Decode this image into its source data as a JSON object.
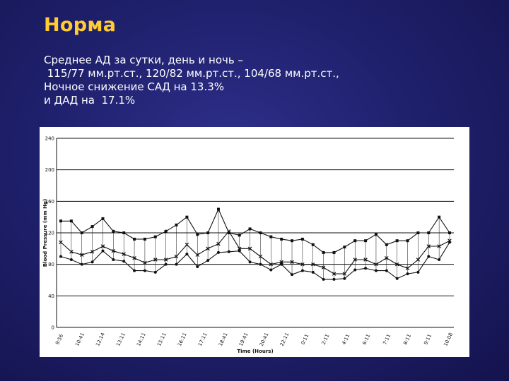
{
  "slide": {
    "title": "Норма",
    "lines": [
      "Среднее АД за сутки, день и ночь –",
      " 115/77 мм.рт.ст., 120/82 мм.рт.ст., 104/68 мм.рт.ст.,",
      "Ночное снижение САД на 13.3%",
      "и ДАД на  17.1%"
    ]
  },
  "colors": {
    "title": "#ffcc33",
    "text": "#ffffff",
    "series": "#111111",
    "background": "#1f2070"
  },
  "chart_data": {
    "type": "line",
    "xlabel": "Time (Hours)",
    "ylabel": "Blood Pressure (mm Hg)",
    "ylim": [
      0,
      240
    ],
    "yticks": [
      0,
      40,
      80,
      120,
      160,
      200,
      240
    ],
    "grid": "horizontal",
    "x_tick_labels": [
      "9:56",
      "10:41",
      "12:14",
      "13:11",
      "14:11",
      "15:11",
      "16:11",
      "17:11",
      "18:41",
      "19:41",
      "20:41",
      "22:11",
      "0:11",
      "2:11",
      "4:11",
      "6:11",
      "7:11",
      "8:11",
      "9:11",
      "10:08"
    ],
    "series": [
      {
        "marker": "square",
        "values": [
          135,
          135,
          120,
          128,
          138,
          122,
          120,
          112,
          112,
          115,
          122,
          130,
          140,
          118,
          120,
          150,
          120,
          117,
          125,
          120,
          115,
          112,
          110,
          112,
          105,
          95,
          95,
          102,
          110,
          110,
          118,
          105,
          110,
          110,
          120,
          120,
          140,
          120
        ]
      },
      {
        "marker": "x",
        "values": [
          108,
          96,
          92,
          96,
          103,
          97,
          93,
          88,
          82,
          86,
          86,
          90,
          105,
          92,
          100,
          106,
          122,
          100,
          100,
          90,
          80,
          83,
          83,
          80,
          80,
          76,
          68,
          68,
          86,
          86,
          80,
          88,
          80,
          75,
          86,
          103,
          103,
          110
        ]
      },
      {
        "marker": "dot",
        "values": [
          90,
          86,
          80,
          83,
          97,
          86,
          84,
          72,
          72,
          70,
          80,
          80,
          93,
          77,
          85,
          95,
          96,
          97,
          83,
          80,
          73,
          80,
          67,
          72,
          70,
          61,
          61,
          62,
          73,
          75,
          72,
          72,
          62,
          68,
          70,
          90,
          86,
          108
        ]
      }
    ]
  }
}
